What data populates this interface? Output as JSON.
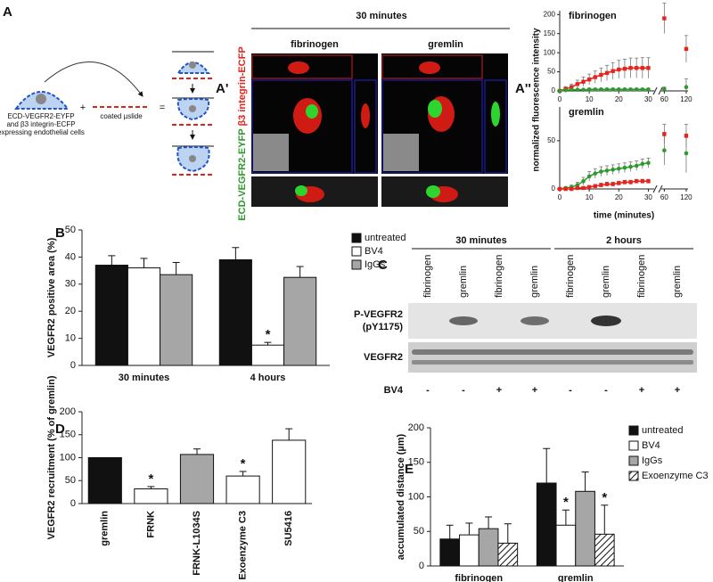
{
  "panel_labels": [
    "A",
    "A'",
    "A''",
    "B",
    "C",
    "D",
    "E"
  ],
  "diagram": {
    "cell_label": [
      "ECD-VEGFR2-EYFP",
      "and β3 integrin-ECFP",
      "expressing endothelial cells"
    ],
    "plus": "+",
    "slide_label": "coated µslide",
    "equals": "="
  },
  "microscopy": {
    "time": "30 minutes",
    "columns": [
      "fibrinogen",
      "gremlin"
    ],
    "side_label_green": "ECD-VEGFR2-EYFP",
    "side_label_red": "β3 integrin-ECFP"
  },
  "blot": {
    "groups": [
      "30 minutes",
      "2 hours"
    ],
    "lanes": [
      "fibrinogen",
      "gremlin",
      "fibrinogen",
      "gremlin",
      "fibrinogen",
      "gremlin",
      "fibrinogen",
      "gremlin"
    ],
    "rows": [
      {
        "lines": [
          "P-VEGFR2",
          "(pY1175)"
        ]
      },
      {
        "lines": [
          "VEGFR2"
        ]
      }
    ],
    "treatment_label": "BV4",
    "treatment": [
      "-",
      "-",
      "+",
      "+",
      "-",
      "-",
      "+",
      "+"
    ]
  },
  "chart_data": [
    {
      "type": "line",
      "title": "fibrinogen",
      "ylabel": "normalized fluorescence intensity",
      "x": [
        0,
        2,
        4,
        6,
        8,
        10,
        12,
        14,
        16,
        18,
        20,
        22,
        24,
        26,
        28,
        30,
        60,
        120
      ],
      "xlim": [
        0,
        125
      ],
      "x_break": [
        32,
        52
      ],
      "xticks": [
        0,
        10,
        20,
        30,
        60,
        120
      ],
      "ylim": [
        0,
        210
      ],
      "yticks": [
        0,
        50,
        100,
        150,
        200
      ],
      "series": [
        {
          "color": "#e8231d",
          "marker": "square",
          "values": [
            0,
            5,
            10,
            18,
            24,
            30,
            36,
            42,
            47,
            52,
            56,
            58,
            60,
            60,
            60,
            60,
            190,
            110
          ],
          "errors": [
            2,
            6,
            8,
            10,
            12,
            14,
            16,
            18,
            20,
            22,
            24,
            25,
            26,
            26,
            27,
            27,
            40,
            35
          ]
        },
        {
          "color": "#2e9a2e",
          "marker": "circle",
          "values": [
            0,
            2,
            3,
            3,
            3,
            4,
            4,
            4,
            4,
            4,
            4,
            4,
            4,
            4,
            4,
            4,
            5,
            10
          ],
          "errors": [
            1,
            2,
            2,
            2,
            2,
            2,
            2,
            2,
            2,
            2,
            2,
            2,
            2,
            2,
            2,
            2,
            5,
            22
          ]
        }
      ]
    },
    {
      "type": "line",
      "title": "gremlin",
      "xlabel": "time (minutes)",
      "x": [
        0,
        2,
        4,
        6,
        8,
        10,
        12,
        14,
        16,
        18,
        20,
        22,
        24,
        26,
        28,
        30,
        60,
        120
      ],
      "xlim": [
        0,
        125
      ],
      "x_break": [
        32,
        52
      ],
      "xticks": [
        0,
        10,
        20,
        30,
        60,
        120
      ],
      "ylim": [
        0,
        85
      ],
      "yticks": [
        0,
        50
      ],
      "series": [
        {
          "color": "#2e9a2e",
          "marker": "circle",
          "values": [
            0,
            1,
            2,
            4,
            8,
            13,
            16,
            18,
            19,
            20,
            21,
            22,
            23,
            24,
            26,
            27,
            40,
            37
          ],
          "errors": [
            1,
            1,
            2,
            3,
            4,
            5,
            5,
            5,
            5,
            5,
            5,
            5,
            5,
            5,
            5,
            5,
            15,
            20
          ]
        },
        {
          "color": "#e8231d",
          "marker": "square",
          "values": [
            0,
            0,
            0,
            1,
            1,
            2,
            3,
            4,
            5,
            5,
            6,
            7,
            7,
            8,
            8,
            8,
            57,
            55
          ],
          "errors": [
            0,
            0,
            1,
            1,
            1,
            1,
            1,
            2,
            2,
            2,
            2,
            2,
            2,
            2,
            2,
            2,
            10,
            12
          ]
        }
      ]
    },
    {
      "type": "bar",
      "ylabel": "VEGFR2 positive area (%)",
      "categories": [
        "30 minutes",
        "4 hours"
      ],
      "ylim": [
        0,
        50
      ],
      "yticks": [
        0,
        10,
        20,
        30,
        40,
        50
      ],
      "legend": "upper right",
      "series": [
        {
          "name": "untreated",
          "color": "#111111",
          "values": [
            37,
            39
          ],
          "errors": [
            3.5,
            4.5
          ]
        },
        {
          "name": "BV4",
          "color": "#ffffff",
          "values": [
            36,
            7.5
          ],
          "errors": [
            3.5,
            1
          ]
        },
        {
          "name": "IgGs",
          "color": "#a6a6a6",
          "values": [
            33.5,
            32.5
          ],
          "errors": [
            4.5,
            4
          ]
        }
      ],
      "annotations": [
        {
          "text": "*",
          "category": "4 hours",
          "series": "BV4"
        }
      ]
    },
    {
      "type": "bar",
      "ylabel": "VEGFR2 recruitment  (% of gremlin)",
      "categories": [
        "gremlin",
        "FRNK",
        "FRNK-L1034S",
        "Exoenzyme C3",
        "SU5416"
      ],
      "values": [
        100,
        32,
        107,
        60,
        138
      ],
      "errors": [
        0,
        5,
        12,
        10,
        25
      ],
      "colors": [
        "#111111",
        "#ffffff",
        "#a6a6a6",
        "#ffffff",
        "#ffffff"
      ],
      "ylim": [
        0,
        200
      ],
      "yticks": [
        0,
        50,
        100,
        150,
        200
      ],
      "annotations": [
        {
          "text": "*",
          "category": "FRNK"
        },
        {
          "text": "*",
          "category": "Exoenzyme C3"
        }
      ]
    },
    {
      "type": "bar",
      "ylabel": "accumulated distance (µm)",
      "categories": [
        "fibrinogen",
        "gremlin"
      ],
      "ylim": [
        0,
        200
      ],
      "yticks": [
        0,
        50,
        100,
        150,
        200
      ],
      "legend": "upper right",
      "series": [
        {
          "name": "untreated",
          "color": "#111111",
          "values": [
            39,
            120
          ],
          "errors": [
            20,
            50
          ]
        },
        {
          "name": "BV4",
          "color": "#ffffff",
          "values": [
            45,
            59
          ],
          "errors": [
            17,
            22
          ]
        },
        {
          "name": "IgGs",
          "color": "#a6a6a6",
          "values": [
            54,
            108
          ],
          "errors": [
            17,
            28
          ]
        },
        {
          "name": "Exoenzyme C3",
          "color": "#ffffff",
          "hatch": true,
          "values": [
            33,
            46
          ],
          "errors": [
            28,
            42
          ]
        }
      ],
      "annotations": [
        {
          "text": "*",
          "category": "gremlin",
          "series": "BV4"
        },
        {
          "text": "*",
          "category": "gremlin",
          "series": "Exoenzyme C3"
        }
      ]
    }
  ]
}
